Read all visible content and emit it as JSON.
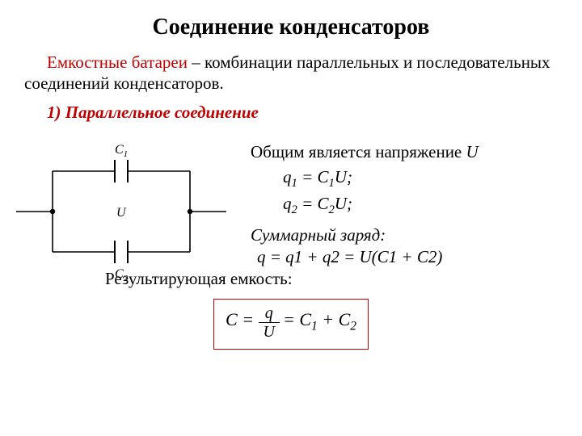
{
  "title": "Соединение конденсаторов",
  "intro_term": "Емкостные батареи",
  "intro_rest": " – комбинации параллельных и последовательных соединений конденсаторов.",
  "subheading": "1) Параллельное соединение",
  "common_line": "Общим является напряжение ",
  "common_var": "U",
  "eq1_html": "q<sub>1</sub> = C<sub>1</sub>U;",
  "eq2_html": "q<sub>2</sub> = C<sub>2</sub>U;",
  "sum_label": "Суммарный заряд:",
  "sum_eq": " q = q1 + q2 = U(C1 + C2)",
  "result_label": "Результирующая емкость:",
  "formula": {
    "lhs": "C",
    "num": "q",
    "den": "U",
    "rhs1": "C",
    "rhs1_sub": "1",
    "plus": " + ",
    "rhs2": "C",
    "rhs2_sub": "2"
  },
  "diagram": {
    "c1_label": "C",
    "c1_sub": "1",
    "c2_label": "C",
    "c2_sub": "2",
    "u_label": "U",
    "stroke": "#000000",
    "stroke_width": 1.6,
    "node_r": 3.2
  }
}
